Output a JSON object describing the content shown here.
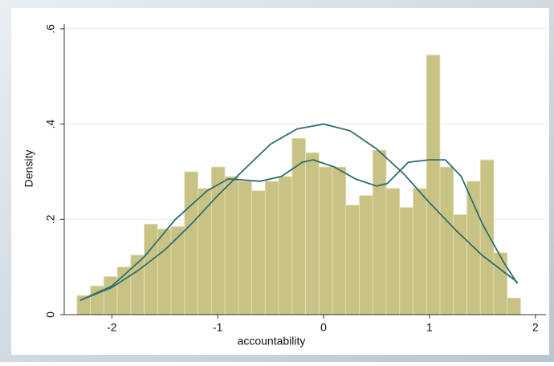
{
  "chart_data": {
    "type": "histogram",
    "xlabel": "accountability",
    "ylabel": "Density",
    "bins": [
      -2.33,
      -2.203,
      -2.076,
      -1.949,
      -1.822,
      -1.695,
      -1.568,
      -1.441,
      -1.314,
      -1.187,
      -1.06,
      -0.933,
      -0.806,
      -0.679,
      -0.552,
      -0.425,
      -0.298,
      -0.171,
      -0.044,
      0.083,
      0.21,
      0.337,
      0.464,
      0.591,
      0.718,
      0.845,
      0.972,
      1.099,
      1.226,
      1.353,
      1.48,
      1.607,
      1.734,
      1.861
    ],
    "values": [
      0.04,
      0.06,
      0.08,
      0.1,
      0.125,
      0.19,
      0.18,
      0.185,
      0.3,
      0.265,
      0.31,
      0.29,
      0.28,
      0.26,
      0.28,
      0.29,
      0.37,
      0.34,
      0.31,
      0.31,
      0.23,
      0.25,
      0.345,
      0.265,
      0.225,
      0.265,
      0.545,
      0.31,
      0.21,
      0.28,
      0.325,
      0.13,
      0.035
    ],
    "color": "#c9c285",
    "lines": [
      {
        "color": "#2f6f6c",
        "x": [
          -2.3,
          -2,
          -1.7,
          -1.4,
          -1.1,
          -0.9,
          -0.6,
          -0.4,
          -0.2,
          -0.1,
          0.1,
          0.3,
          0.5,
          0.6,
          0.8,
          1,
          1.15,
          1.3,
          1.5,
          1.7,
          1.83
        ],
        "values": [
          0.03,
          0.06,
          0.12,
          0.2,
          0.26,
          0.285,
          0.28,
          0.29,
          0.32,
          0.325,
          0.31,
          0.285,
          0.27,
          0.275,
          0.32,
          0.325,
          0.325,
          0.29,
          0.19,
          0.11,
          0.065
        ]
      },
      {
        "color": "#2f6f6c",
        "x": [
          -2.3,
          -2,
          -1.75,
          -1.5,
          -1.25,
          -1,
          -0.75,
          -0.5,
          -0.25,
          0,
          0.25,
          0.5,
          0.75,
          1,
          1.25,
          1.5,
          1.83
        ],
        "values": [
          0.03,
          0.057,
          0.093,
          0.136,
          0.19,
          0.25,
          0.305,
          0.358,
          0.39,
          0.4,
          0.386,
          0.348,
          0.297,
          0.235,
          0.177,
          0.124,
          0.068
        ]
      }
    ],
    "xlim": [
      -2.45,
      2.1
    ],
    "ylim": [
      0,
      0.61
    ],
    "xticks": [
      -2,
      -1,
      0,
      1,
      2
    ],
    "yticks": [
      0,
      {
        "value": 0.2,
        "label": ".2"
      },
      {
        "value": 0.4,
        "label": ".4"
      },
      {
        "value": 0.6,
        "label": ".6"
      }
    ],
    "grid": true
  }
}
